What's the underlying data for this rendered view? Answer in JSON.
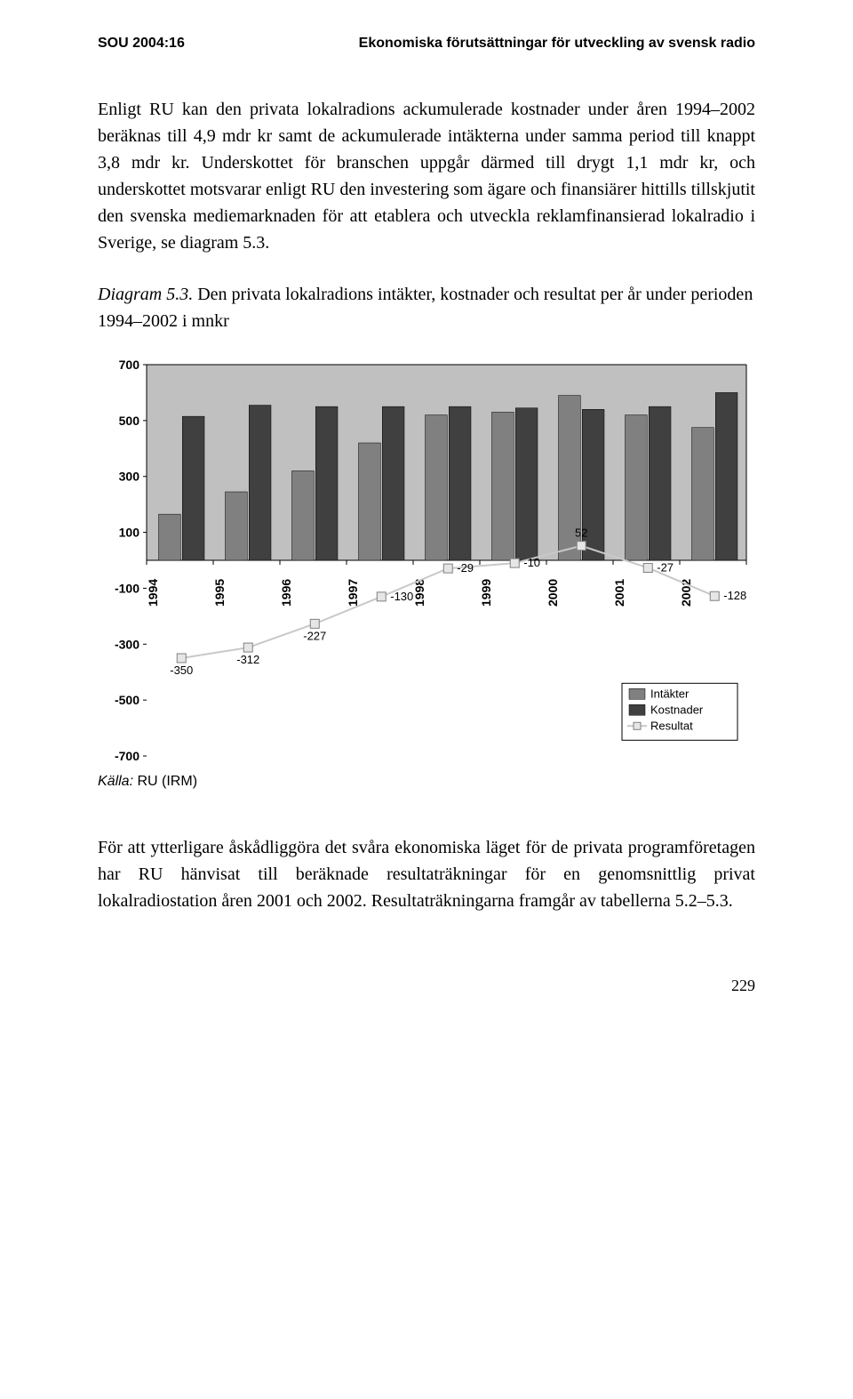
{
  "header": {
    "left": "SOU 2004:16",
    "right": "Ekonomiska förutsättningar för utveckling av svensk radio"
  },
  "paragraph1": "Enligt RU kan den privata lokalradions ackumulerade kostnader under åren 1994–2002 beräknas till 4,9 mdr kr samt de ackumulerade intäkterna under samma period till knappt 3,8 mdr kr. Underskottet för branschen uppgår därmed till drygt 1,1 mdr kr, och underskottet motsvarar enligt RU den investering som ägare och finansiärer hittills tillskjutit den svenska mediemarknaden för att etablera och utveckla reklamfinansierad lokalradio i Sverige, se diagram 5.3.",
  "caption": {
    "label": "Diagram 5.3.",
    "text": " Den privata lokalradions intäkter, kostnader och resultat per år under perioden 1994–2002 i mnkr"
  },
  "chart": {
    "type": "bar-line",
    "years": [
      "1994",
      "1995",
      "1996",
      "1997",
      "1998",
      "1999",
      "2000",
      "2001",
      "2002"
    ],
    "intakter": [
      165,
      245,
      320,
      420,
      520,
      530,
      590,
      520,
      475
    ],
    "kostnader": [
      515,
      555,
      550,
      550,
      550,
      545,
      540,
      550,
      600
    ],
    "resultat": [
      -350,
      -312,
      -227,
      -130,
      -29,
      -10,
      52,
      -27,
      -128
    ],
    "resultat_labels": [
      "-350",
      "-312",
      "-227",
      "-130",
      "-29",
      "-10",
      "52",
      "-27",
      "-128"
    ],
    "y_ticks": [
      700,
      500,
      300,
      100,
      -100,
      -300,
      -500,
      -700
    ],
    "y_min": -700,
    "y_max": 700,
    "y_tick_step": 200,
    "colors": {
      "intakter": "#808080",
      "kostnader": "#404040",
      "plot_bg": "#c0c0c0",
      "grid": "#000000",
      "resultat_marker_fill": "#e6e6e6",
      "resultat_marker_stroke": "#808080",
      "resultat_line": "#c8c8c8",
      "legend_box_stroke": "#000000",
      "tick_font": "#000000"
    },
    "legend": {
      "items": [
        "Intäkter",
        "Kostnader",
        "Resultat"
      ]
    },
    "fonts": {
      "tick_size": 14,
      "value_label_size": 13,
      "legend_size": 13,
      "year_size": 14
    }
  },
  "source": {
    "label": "Källa:",
    "text": " RU (IRM)"
  },
  "paragraph2": "För att ytterligare åskådliggöra det svåra ekonomiska läget för de privata programföretagen har RU hänvisat till beräknade resultaträkningar för en genomsnittlig privat lokalradiostation åren 2001 och 2002. Resultaträkningarna framgår av tabellerna 5.2–5.3.",
  "page_number": "229"
}
